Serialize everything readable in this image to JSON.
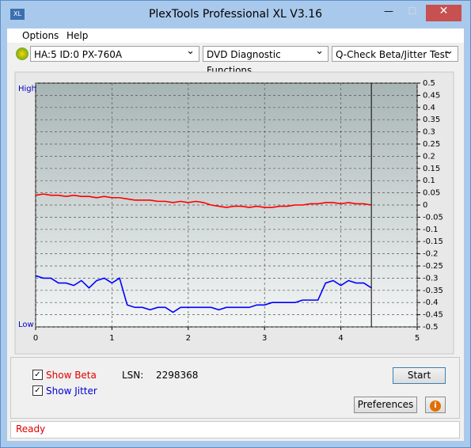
{
  "window": {
    "title": "PlexTools Professional XL V3.16"
  },
  "menu": [
    "Options",
    "Help"
  ],
  "toolbar": {
    "drive": "HA:5 ID:0  PX-760A",
    "function": "DVD Diagnostic Functions",
    "test": "Q-Check Beta/Jitter Test"
  },
  "chart_data": {
    "type": "line",
    "y_high_label": "High",
    "y_low_label": "Low",
    "x": [
      0,
      0.1,
      0.2,
      0.3,
      0.4,
      0.5,
      0.6,
      0.7,
      0.8,
      0.9,
      1.0,
      1.1,
      1.2,
      1.3,
      1.4,
      1.5,
      1.6,
      1.7,
      1.8,
      1.9,
      2.0,
      2.1,
      2.2,
      2.3,
      2.4,
      2.5,
      2.6,
      2.7,
      2.8,
      2.9,
      3.0,
      3.1,
      3.2,
      3.3,
      3.4,
      3.5,
      3.6,
      3.7,
      3.8,
      3.9,
      4.0,
      4.1,
      4.2,
      4.3,
      4.4
    ],
    "series": [
      {
        "name": "Beta",
        "color": "#ff0000",
        "values": [
          0.04,
          0.045,
          0.04,
          0.04,
          0.035,
          0.04,
          0.035,
          0.035,
          0.03,
          0.035,
          0.03,
          0.03,
          0.025,
          0.02,
          0.02,
          0.02,
          0.015,
          0.015,
          0.01,
          0.015,
          0.01,
          0.015,
          0.01,
          0.0,
          -0.005,
          -0.01,
          -0.005,
          -0.005,
          -0.01,
          -0.005,
          -0.01,
          -0.01,
          -0.005,
          -0.005,
          0.0,
          0.0,
          0.005,
          0.005,
          0.01,
          0.01,
          0.005,
          0.01,
          0.005,
          0.005,
          0.0
        ]
      },
      {
        "name": "Jitter",
        "color": "#0000ff",
        "values": [
          -0.29,
          -0.3,
          -0.3,
          -0.32,
          -0.32,
          -0.33,
          -0.31,
          -0.34,
          -0.31,
          -0.3,
          -0.32,
          -0.3,
          -0.41,
          -0.42,
          -0.42,
          -0.43,
          -0.42,
          -0.42,
          -0.44,
          -0.42,
          -0.42,
          -0.42,
          -0.42,
          -0.42,
          -0.43,
          -0.42,
          -0.42,
          -0.42,
          -0.42,
          -0.41,
          -0.41,
          -0.4,
          -0.4,
          -0.4,
          -0.4,
          -0.39,
          -0.39,
          -0.39,
          -0.32,
          -0.31,
          -0.33,
          -0.31,
          -0.32,
          -0.32,
          -0.34
        ]
      }
    ],
    "xlim": [
      0,
      5
    ],
    "xticks": [
      0,
      1,
      2,
      3,
      4,
      5
    ],
    "ylim": [
      -0.5,
      0.5
    ],
    "yticks": [
      0.5,
      0.45,
      0.4,
      0.35,
      0.3,
      0.25,
      0.2,
      0.15,
      0.1,
      0.05,
      0,
      -0.05,
      -0.1,
      -0.15,
      -0.2,
      -0.25,
      -0.3,
      -0.35,
      -0.4,
      -0.45,
      -0.5
    ],
    "grid": true
  },
  "controls": {
    "show_beta": "Show Beta",
    "show_jitter": "Show Jitter",
    "lsn_label": "LSN:",
    "lsn_value": "2298368",
    "start": "Start",
    "preferences": "Preferences"
  },
  "status": "Ready"
}
